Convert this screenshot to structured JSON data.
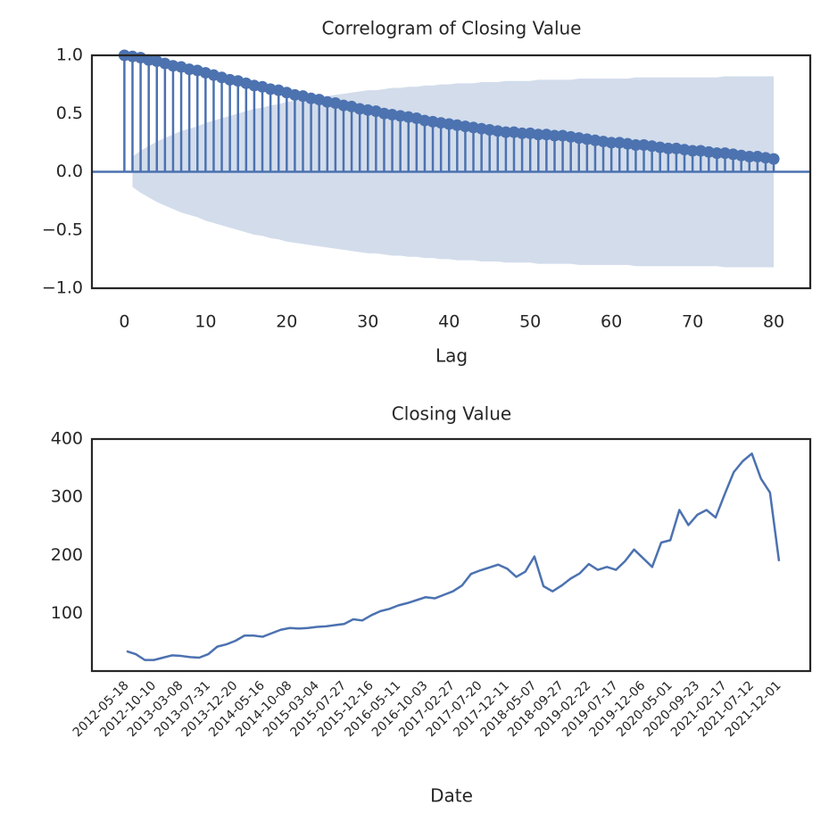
{
  "chart_data": [
    {
      "type": "stem",
      "title": "Correlogram of Closing Value",
      "x_label": "Lag",
      "color": "#4c72b0",
      "band_color": "#4c72b0",
      "x": [
        0,
        1,
        2,
        3,
        4,
        5,
        6,
        7,
        8,
        9,
        10,
        11,
        12,
        13,
        14,
        15,
        16,
        17,
        18,
        19,
        20,
        21,
        22,
        23,
        24,
        25,
        26,
        27,
        28,
        29,
        30,
        31,
        32,
        33,
        34,
        35,
        36,
        37,
        38,
        39,
        40,
        41,
        42,
        43,
        44,
        45,
        46,
        47,
        48,
        49,
        50,
        51,
        52,
        53,
        54,
        55,
        56,
        57,
        58,
        59,
        60,
        61,
        62,
        63,
        64,
        65,
        66,
        67,
        68,
        69,
        70,
        71,
        72,
        73,
        74,
        75,
        76,
        77,
        78,
        79,
        80
      ],
      "values": [
        1.0,
        0.99,
        0.98,
        0.96,
        0.95,
        0.93,
        0.91,
        0.9,
        0.88,
        0.87,
        0.85,
        0.83,
        0.81,
        0.79,
        0.78,
        0.76,
        0.74,
        0.73,
        0.71,
        0.7,
        0.68,
        0.66,
        0.65,
        0.63,
        0.62,
        0.6,
        0.59,
        0.57,
        0.56,
        0.54,
        0.53,
        0.52,
        0.5,
        0.49,
        0.48,
        0.47,
        0.46,
        0.44,
        0.43,
        0.42,
        0.41,
        0.4,
        0.39,
        0.38,
        0.37,
        0.36,
        0.35,
        0.34,
        0.34,
        0.33,
        0.33,
        0.32,
        0.32,
        0.31,
        0.31,
        0.3,
        0.29,
        0.28,
        0.27,
        0.26,
        0.25,
        0.25,
        0.24,
        0.23,
        0.23,
        0.22,
        0.21,
        0.2,
        0.2,
        0.19,
        0.18,
        0.18,
        0.17,
        0.16,
        0.16,
        0.15,
        0.14,
        0.13,
        0.13,
        0.12,
        0.11
      ],
      "confidence_band": [
        null,
        0.13,
        0.18,
        0.22,
        0.26,
        0.29,
        0.32,
        0.35,
        0.37,
        0.39,
        0.42,
        0.44,
        0.46,
        0.48,
        0.5,
        0.52,
        0.54,
        0.55,
        0.57,
        0.58,
        0.6,
        0.61,
        0.62,
        0.63,
        0.64,
        0.65,
        0.66,
        0.67,
        0.68,
        0.69,
        0.7,
        0.7,
        0.71,
        0.72,
        0.72,
        0.73,
        0.73,
        0.74,
        0.74,
        0.75,
        0.75,
        0.76,
        0.76,
        0.76,
        0.77,
        0.77,
        0.77,
        0.78,
        0.78,
        0.78,
        0.78,
        0.79,
        0.79,
        0.79,
        0.79,
        0.79,
        0.8,
        0.8,
        0.8,
        0.8,
        0.8,
        0.8,
        0.8,
        0.81,
        0.81,
        0.81,
        0.81,
        0.81,
        0.81,
        0.81,
        0.81,
        0.81,
        0.81,
        0.81,
        0.82,
        0.82,
        0.82,
        0.82,
        0.82,
        0.82,
        0.82
      ],
      "xlim": [
        -4,
        84.5
      ],
      "xticks": [
        0,
        10,
        20,
        30,
        40,
        50,
        60,
        70,
        80
      ],
      "ylim": [
        -1,
        1
      ],
      "yticks": [
        {
          "value": -1,
          "label": "−1.0"
        },
        {
          "value": -0.5,
          "label": "−0.5"
        },
        {
          "value": 0,
          "label": "0.0"
        },
        {
          "value": 0.5,
          "label": "0.5"
        },
        {
          "value": 1,
          "label": "1.0"
        }
      ]
    },
    {
      "type": "line",
      "title": "Closing Value",
      "x_label": "Date",
      "color": "#4c72b0",
      "categories": [
        "2012-05-18",
        null,
        null,
        "2012-10-10",
        null,
        null,
        "2013-03-08",
        null,
        null,
        "2013-07-31",
        null,
        null,
        "2013-12-20",
        null,
        null,
        "2014-05-16",
        null,
        null,
        "2014-10-08",
        null,
        null,
        "2015-03-04",
        null,
        null,
        "2015-07-27",
        null,
        null,
        "2015-12-16",
        null,
        null,
        "2016-05-11",
        null,
        null,
        "2016-10-03",
        null,
        null,
        "2017-02-27",
        null,
        null,
        "2017-07-20",
        null,
        null,
        "2017-12-11",
        null,
        null,
        "2018-05-07",
        null,
        null,
        "2018-09-27",
        null,
        null,
        "2019-02-22",
        null,
        null,
        "2019-07-17",
        null,
        null,
        "2019-12-06",
        null,
        null,
        "2020-05-01",
        null,
        null,
        "2020-09-23",
        null,
        null,
        "2021-02-17",
        null,
        null,
        "2021-07-12",
        null,
        null,
        "2021-12-01"
      ],
      "values": [
        35,
        30,
        20,
        20,
        24,
        28,
        27,
        25,
        24,
        30,
        43,
        47,
        53,
        62,
        62,
        60,
        66,
        72,
        75,
        74,
        75,
        77,
        78,
        80,
        82,
        90,
        88,
        97,
        104,
        108,
        114,
        118,
        123,
        128,
        126,
        132,
        138,
        148,
        168,
        174,
        179,
        184,
        177,
        163,
        172,
        198,
        147,
        138,
        148,
        160,
        169,
        185,
        175,
        180,
        175,
        190,
        210,
        195,
        180,
        222,
        226,
        278,
        252,
        270,
        278,
        265,
        305,
        343,
        362,
        375,
        332,
        308,
        190
      ],
      "ylim": [
        1,
        400
      ],
      "yticks": [
        100,
        200,
        300,
        400
      ]
    }
  ]
}
